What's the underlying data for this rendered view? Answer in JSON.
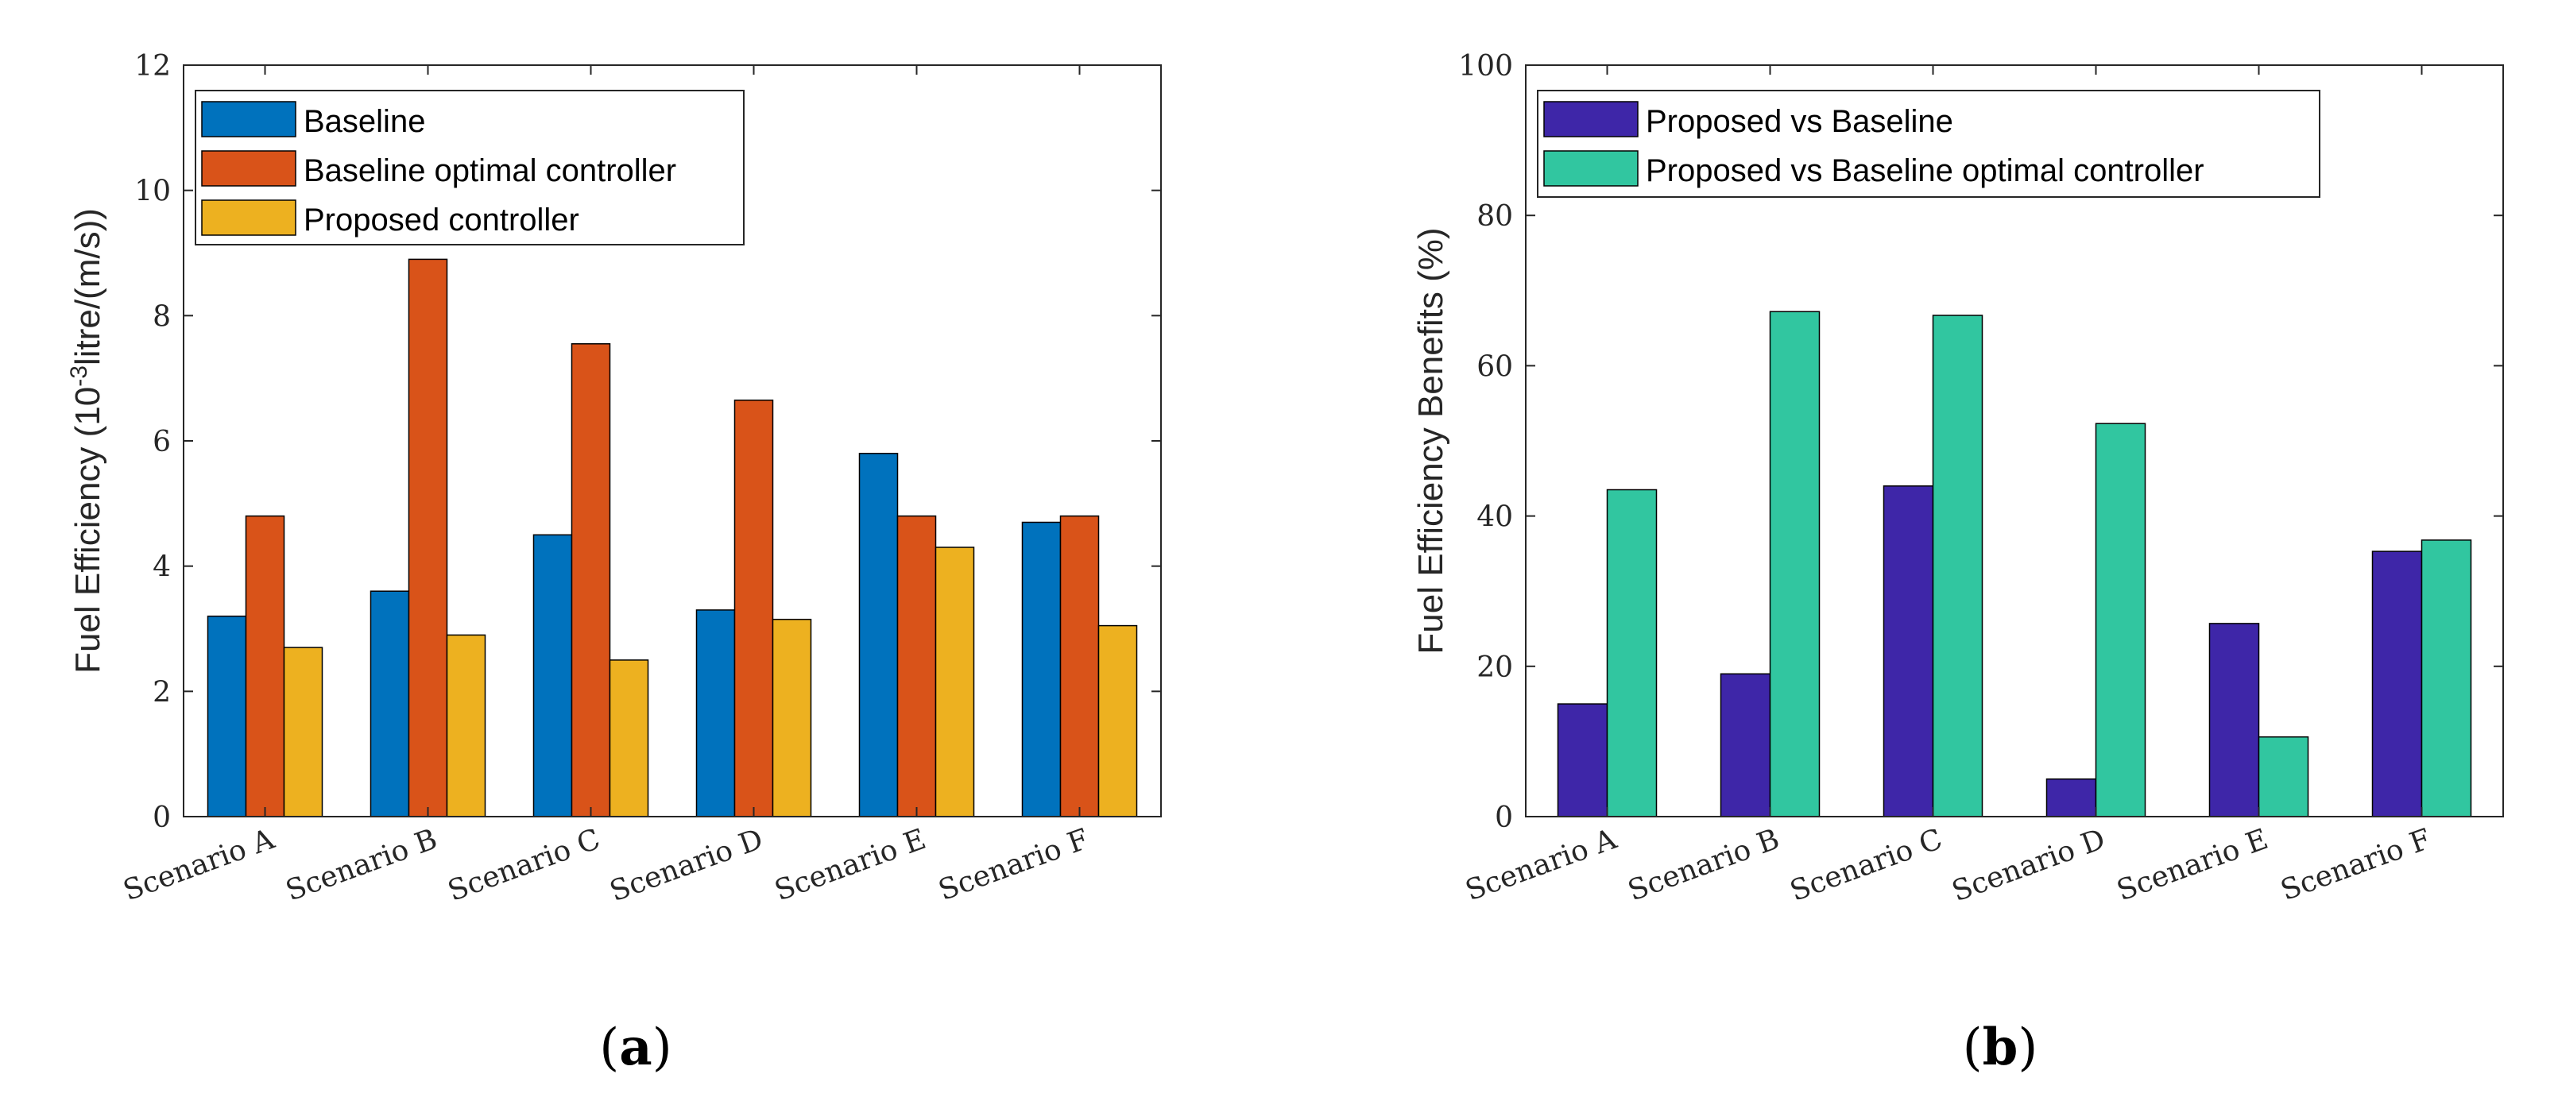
{
  "chart_data": [
    {
      "type": "bar",
      "panel_label": "a",
      "title": "",
      "xlabel": "",
      "ylabel_pre": "Fuel Efficiency (10",
      "ylabel_sup": "-3",
      "ylabel_post": "litre/(m/s))",
      "ylim": [
        0,
        12
      ],
      "yticks": [
        0,
        2,
        4,
        6,
        8,
        10,
        12
      ],
      "categories": [
        "Scenario A",
        "Scenario B",
        "Scenario C",
        "Scenario D",
        "Scenario E",
        "Scenario F"
      ],
      "legend_position": "top-left",
      "series": [
        {
          "name": "Baseline",
          "color": "#0072BD",
          "values": [
            3.2,
            3.6,
            4.5,
            3.3,
            5.8,
            4.7
          ]
        },
        {
          "name": "Baseline optimal controller",
          "color": "#D95319",
          "values": [
            4.8,
            8.9,
            7.55,
            6.65,
            4.8,
            4.8
          ]
        },
        {
          "name": "Proposed controller",
          "color": "#EDB120",
          "values": [
            2.7,
            2.9,
            2.5,
            3.15,
            4.3,
            3.05
          ]
        }
      ]
    },
    {
      "type": "bar",
      "panel_label": "b",
      "title": "",
      "xlabel": "",
      "ylabel": "Fuel Efficiency Benefits (%)",
      "ylim": [
        0,
        100
      ],
      "yticks": [
        0,
        20,
        40,
        60,
        80,
        100
      ],
      "categories": [
        "Scenario A",
        "Scenario B",
        "Scenario C",
        "Scenario D",
        "Scenario E",
        "Scenario F"
      ],
      "legend_position": "top-left",
      "series": [
        {
          "name": "Proposed vs Baseline",
          "color": "#3E26A8",
          "values": [
            15,
            19,
            44,
            5,
            25.7,
            35.3
          ]
        },
        {
          "name": "Proposed vs Baseline optimal controller",
          "color": "#31C6A0",
          "values": [
            43.5,
            67.2,
            66.7,
            52.3,
            10.6,
            36.8
          ]
        }
      ]
    }
  ]
}
